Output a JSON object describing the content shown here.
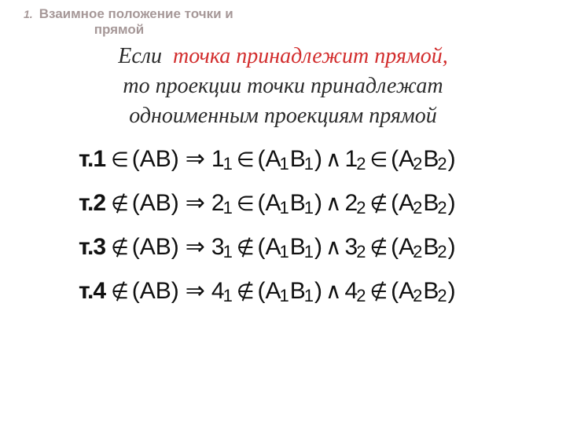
{
  "header": {
    "num": "1.",
    "title_l1": "Взаимное положение точки и",
    "title_l2": "прямой"
  },
  "thesis": {
    "p1": "Если",
    "hl": "точка  принадлежит  прямой",
    "hl_tail": ",",
    "p2": "то  проекции  точки  принадлежат",
    "p3": "одноименным  проекциям прямой"
  },
  "symbols": {
    "in": "∈",
    "notin": "∉",
    "imp": "⇒",
    "and": "∧"
  },
  "rows": [
    {
      "label_t": "т.",
      "label_n": "1",
      "rel1": "in",
      "d1": "1",
      "s1": "1",
      "rel2": "in",
      "d2": "1",
      "s2": "2",
      "rel3": "in"
    },
    {
      "label_t": "т.",
      "label_n": "2",
      "rel1": "notin",
      "d1": "2",
      "s1": "1",
      "rel2": "in",
      "d2": "2",
      "s2": "2",
      "rel3": "notin"
    },
    {
      "label_t": "т.",
      "label_n": "3",
      "rel1": "notin",
      "d1": "3",
      "s1": "1",
      "rel2": "notin",
      "d2": "3",
      "s2": "2",
      "rel3": "notin"
    },
    {
      "label_t": "т.",
      "label_n": "4",
      "rel1": "notin",
      "d1": "4",
      "s1": "1",
      "rel2": "notin",
      "d2": "4",
      "s2": "2",
      "rel3": "notin"
    }
  ],
  "ab": {
    "open": "(",
    "close": ")",
    "A": "A",
    "B": "B",
    "one": "1",
    "two": "2"
  },
  "colors": {
    "header": "#a69898",
    "highlight": "#d22d2d",
    "text": "#2b2b2b"
  }
}
